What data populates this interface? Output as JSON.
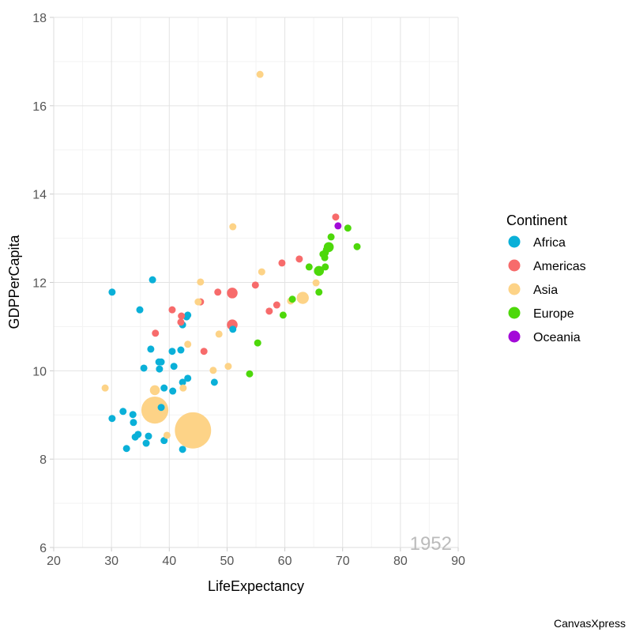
{
  "chart_data": {
    "type": "scatter",
    "title": "",
    "xlabel": "LifeExpectancy",
    "ylabel": "GDPPerCapita",
    "xlim": [
      20,
      90
    ],
    "ylim": [
      6,
      18
    ],
    "xticks": [
      "20",
      "30",
      "40",
      "50",
      "60",
      "70",
      "80",
      "90"
    ],
    "yticks": [
      "6",
      "8",
      "10",
      "12",
      "14",
      "16",
      "18"
    ],
    "grid": true,
    "annotation": "1952",
    "legend": {
      "title": "Continent",
      "placement": "right",
      "entries": [
        {
          "name": "Africa",
          "color": "#0ab0d8"
        },
        {
          "name": "Americas",
          "color": "#f76b6b"
        },
        {
          "name": "Asia",
          "color": "#fdd387"
        },
        {
          "name": "Europe",
          "color": "#4dd80a"
        },
        {
          "name": "Oceania",
          "color": "#a30ad8"
        }
      ]
    },
    "size_note": "bubble size relative (1 = typical)",
    "series": [
      {
        "name": "Africa",
        "points": [
          [
            30.1,
            11.78,
            1
          ],
          [
            37.1,
            12.06,
            1
          ],
          [
            34.9,
            11.38,
            1
          ],
          [
            43.0,
            11.22,
            1
          ],
          [
            43.2,
            11.26,
            1
          ],
          [
            42.3,
            11.04,
            1
          ],
          [
            51.0,
            10.94,
            1
          ],
          [
            36.8,
            10.49,
            1
          ],
          [
            40.5,
            10.44,
            1
          ],
          [
            42.0,
            10.47,
            1
          ],
          [
            38.2,
            10.2,
            1
          ],
          [
            38.6,
            10.2,
            1
          ],
          [
            35.6,
            10.06,
            1
          ],
          [
            38.3,
            10.04,
            1
          ],
          [
            40.8,
            10.1,
            1
          ],
          [
            47.8,
            9.74,
            1
          ],
          [
            43.2,
            9.83,
            1
          ],
          [
            42.3,
            9.74,
            1
          ],
          [
            39.1,
            9.61,
            1
          ],
          [
            40.6,
            9.54,
            1
          ],
          [
            38.6,
            9.17,
            1
          ],
          [
            32.0,
            9.08,
            1
          ],
          [
            30.1,
            8.92,
            1
          ],
          [
            33.7,
            9.01,
            1
          ],
          [
            33.8,
            8.83,
            1
          ],
          [
            34.1,
            8.5,
            1
          ],
          [
            34.6,
            8.56,
            1
          ],
          [
            36.4,
            8.52,
            1
          ],
          [
            36.0,
            8.36,
            1
          ],
          [
            32.6,
            8.24,
            1
          ],
          [
            39.1,
            8.42,
            1
          ],
          [
            42.3,
            8.22,
            1
          ]
        ]
      },
      {
        "name": "Americas",
        "points": [
          [
            68.8,
            13.48,
            1
          ],
          [
            62.5,
            12.53,
            1
          ],
          [
            59.5,
            12.44,
            1
          ],
          [
            54.9,
            11.94,
            1
          ],
          [
            50.9,
            11.76,
            1.5
          ],
          [
            48.4,
            11.78,
            1
          ],
          [
            45.4,
            11.56,
            1
          ],
          [
            40.5,
            11.38,
            1
          ],
          [
            58.6,
            11.49,
            1
          ],
          [
            57.3,
            11.35,
            1
          ],
          [
            42.1,
            11.24,
            1
          ],
          [
            42.0,
            11.1,
            1
          ],
          [
            50.9,
            11.04,
            1.5
          ],
          [
            37.6,
            10.85,
            1
          ],
          [
            46.0,
            10.44,
            1
          ]
        ]
      },
      {
        "name": "Asia",
        "points": [
          [
            55.7,
            16.71,
            1
          ],
          [
            51.0,
            13.26,
            1
          ],
          [
            56.0,
            12.24,
            1
          ],
          [
            45.4,
            12.01,
            1
          ],
          [
            65.4,
            11.99,
            1
          ],
          [
            63.1,
            11.65,
            1.7
          ],
          [
            61.0,
            11.58,
            1
          ],
          [
            45.0,
            11.56,
            1
          ],
          [
            48.6,
            10.83,
            1
          ],
          [
            43.2,
            10.6,
            1
          ],
          [
            50.2,
            10.1,
            1
          ],
          [
            47.6,
            10.01,
            1
          ],
          [
            28.9,
            9.61,
            1
          ],
          [
            42.4,
            9.61,
            1
          ],
          [
            37.5,
            9.56,
            1.4
          ],
          [
            37.5,
            9.11,
            3.8
          ],
          [
            39.6,
            8.54,
            1
          ],
          [
            44.1,
            8.65,
            5.1
          ]
        ]
      },
      {
        "name": "Europe",
        "points": [
          [
            70.9,
            13.23,
            1
          ],
          [
            68.0,
            13.03,
            1
          ],
          [
            72.5,
            12.81,
            1
          ],
          [
            67.6,
            12.8,
            1.4
          ],
          [
            67.2,
            12.74,
            1
          ],
          [
            67.0,
            12.67,
            1
          ],
          [
            66.6,
            12.64,
            1
          ],
          [
            66.9,
            12.56,
            1
          ],
          [
            64.2,
            12.35,
            1
          ],
          [
            67.0,
            12.35,
            1
          ],
          [
            65.9,
            12.26,
            1.4
          ],
          [
            65.9,
            11.78,
            1
          ],
          [
            61.3,
            11.62,
            1
          ],
          [
            59.7,
            11.26,
            1
          ],
          [
            55.3,
            10.63,
            1
          ],
          [
            53.9,
            9.93,
            1
          ]
        ]
      },
      {
        "name": "Oceania",
        "points": [
          [
            69.2,
            13.28,
            1
          ]
        ]
      }
    ]
  },
  "credit": "CanvasXpress"
}
